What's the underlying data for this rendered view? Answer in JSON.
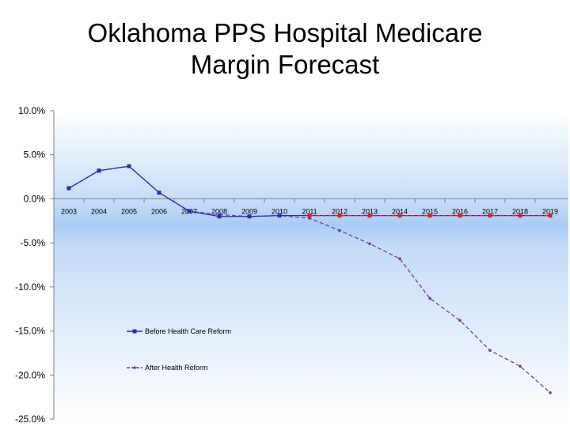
{
  "title": {
    "line1": "Oklahoma PPS Hospital Medicare",
    "line2": "Margin Forecast"
  },
  "chart_data": {
    "type": "line",
    "title": "Oklahoma PPS Hospital Medicare Margin Forecast",
    "xlabel": "",
    "ylabel": "",
    "categories": [
      "2003",
      "2004",
      "2005",
      "2006",
      "2007",
      "2008",
      "2009",
      "2010",
      "2011",
      "2012",
      "2013",
      "2014",
      "2015",
      "2016",
      "2017",
      "2018",
      "2019"
    ],
    "y_ticks": [
      "10.0%",
      "5.0%",
      "0.0%",
      "-5.0%",
      "-10.0%",
      "-15.0%",
      "-20.0%",
      "-25.0%"
    ],
    "ylim": [
      -25,
      10
    ],
    "grid": false,
    "legend_position": "bottom-left",
    "series": [
      {
        "name": "Before Health Care Reform",
        "color": "#2c2ca8",
        "values": [
          1.2,
          3.2,
          3.7,
          0.7,
          -1.4,
          -2.0,
          -2.0,
          -1.9,
          -1.9,
          -1.9,
          -1.9,
          -1.9,
          -1.9,
          -1.9,
          -1.9,
          -1.9,
          -1.9
        ]
      },
      {
        "name": "After Health Reform",
        "color": "#7a3a9a",
        "values": [
          1.2,
          3.2,
          3.7,
          0.7,
          -1.4,
          -1.8,
          -2.0,
          -1.9,
          -2.2,
          -3.6,
          -5.1,
          -6.8,
          -11.3,
          -13.8,
          -17.2,
          -19.0,
          -22.0
        ]
      },
      {
        "name": "",
        "color": "#e02020",
        "values": [
          null,
          null,
          null,
          null,
          null,
          null,
          null,
          null,
          -1.9,
          -1.9,
          -1.9,
          -1.9,
          -1.9,
          -1.9,
          -1.9,
          -1.9,
          -1.9
        ]
      }
    ]
  }
}
